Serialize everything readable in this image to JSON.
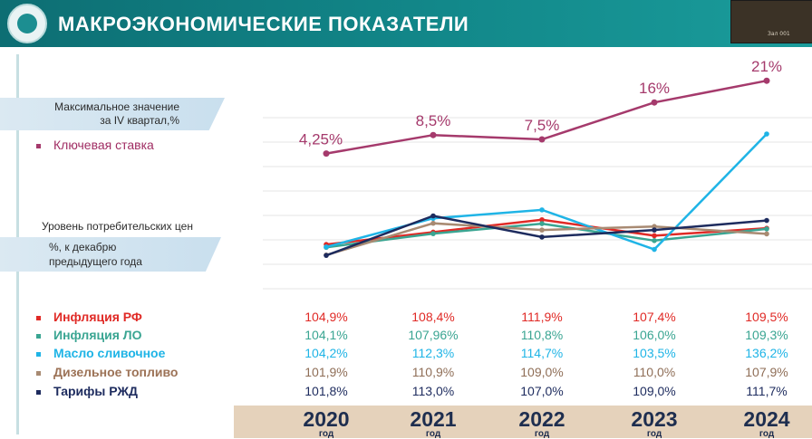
{
  "header": {
    "title": "МАКРОЭКОНОМИЧЕСКИЕ ПОКАЗАТЕЛИ",
    "camera_caption": "Зал 001"
  },
  "key_rate_block": {
    "caption_line1": "Максимальное значение",
    "caption_line2": "за IV квартал,%",
    "legend_label": "Ключевая ставка",
    "color": "#a53a6c"
  },
  "cpi_block": {
    "caption_line1": "Уровень потребительских цен",
    "caption_line2": "%, к декабрю",
    "caption_line3": "предыдущего года"
  },
  "chart_data": [
    {
      "type": "line",
      "x": [
        "2020",
        "2021",
        "2022",
        "2023",
        "2024"
      ],
      "series": [
        {
          "name": "Ключевая ставка",
          "values": [
            4.25,
            8.5,
            7.5,
            16,
            21
          ],
          "labels": [
            "4,25%",
            "8,5%",
            "7,5%",
            "16%",
            "21%"
          ],
          "color": "#a53a6c"
        }
      ]
    },
    {
      "type": "line",
      "x": [
        "2020",
        "2021",
        "2022",
        "2023",
        "2024"
      ],
      "ylim": [
        100,
        140
      ],
      "grid": true,
      "series": [
        {
          "name": "Инфляция РФ",
          "values": [
            104.9,
            108.4,
            111.9,
            107.4,
            109.5
          ],
          "labels": [
            "104,9%",
            "108,4%",
            "111,9%",
            "107,4%",
            "109,5%"
          ],
          "color": "#e02a26"
        },
        {
          "name": "Инфляция ЛО",
          "values": [
            104.1,
            107.96,
            110.8,
            106.0,
            109.3
          ],
          "labels": [
            "104,1%",
            "107,96%",
            "110,8%",
            "106,0%",
            "109,3%"
          ],
          "color": "#3aa592"
        },
        {
          "name": "Масло сливочное",
          "values": [
            104.2,
            112.3,
            114.7,
            103.5,
            136.2
          ],
          "labels": [
            "104,2%",
            "112,3%",
            "114,7%",
            "103,5%",
            "136,2%"
          ],
          "color": "#1fb4e6"
        },
        {
          "name": "Дизельное топливо",
          "values": [
            101.9,
            110.9,
            109.0,
            110.0,
            107.9
          ],
          "labels": [
            "101,9%",
            "110,9%",
            "109,0%",
            "110,0%",
            "107,9%"
          ],
          "color": "#a88a72"
        },
        {
          "name": "Тарифы РЖД",
          "values": [
            101.8,
            113.0,
            107.0,
            109.0,
            111.7
          ],
          "labels": [
            "101,8%",
            "113,0%",
            "107,0%",
            "109,0%",
            "111,7%"
          ],
          "color": "#1d2b5e"
        }
      ]
    }
  ],
  "years": [
    "2020",
    "2021",
    "2022",
    "2023",
    "2024"
  ],
  "year_suffix": "год"
}
